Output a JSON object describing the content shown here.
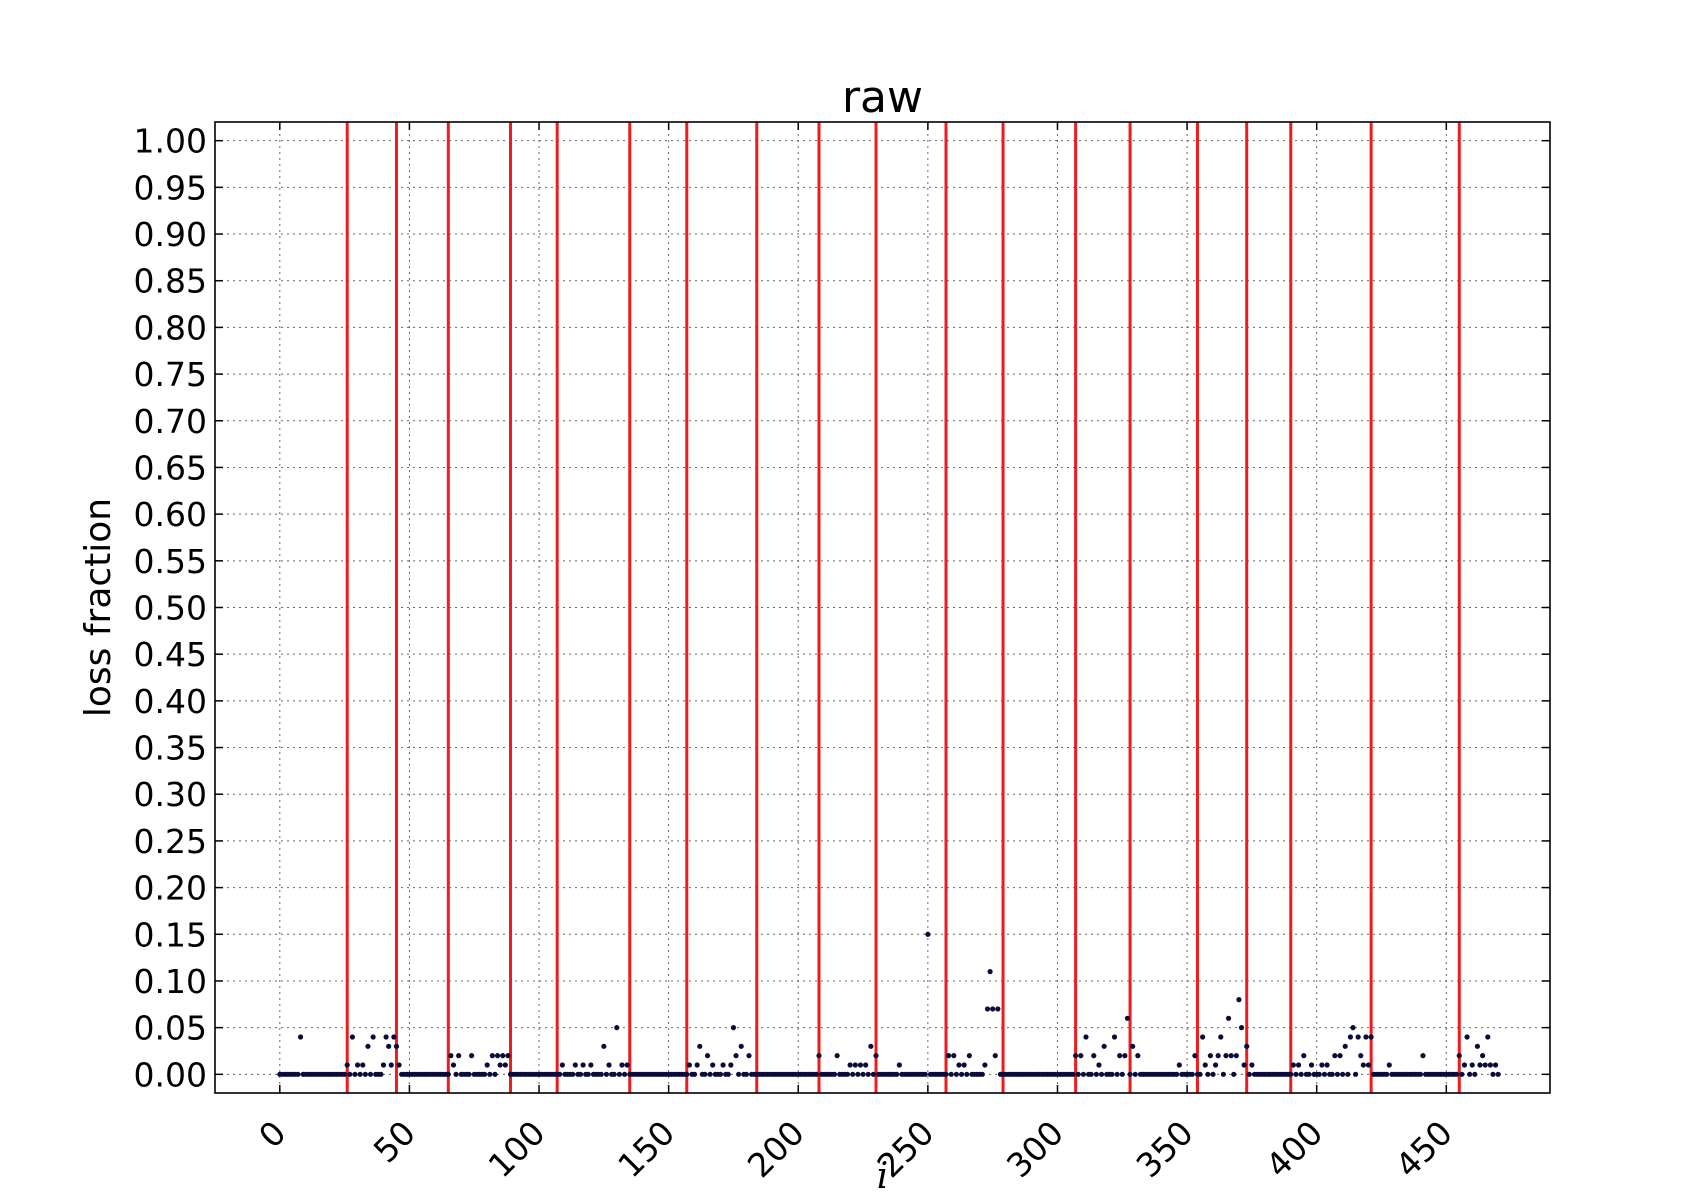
{
  "chart_data": {
    "type": "scatter",
    "title": "raw",
    "xlabel": "i",
    "ylabel": "loss fraction",
    "xlim": [
      -25,
      490
    ],
    "ylim": [
      -0.02,
      1.02
    ],
    "xticks": [
      0,
      50,
      100,
      150,
      200,
      250,
      300,
      350,
      400,
      450
    ],
    "xtick_labels": [
      "0",
      "50",
      "100",
      "150",
      "200",
      "250",
      "300",
      "350",
      "400",
      "450"
    ],
    "yticks": [
      0.0,
      0.05,
      0.1,
      0.15,
      0.2,
      0.25,
      0.3,
      0.35,
      0.4,
      0.45,
      0.5,
      0.55,
      0.6,
      0.65,
      0.7,
      0.75,
      0.8,
      0.85,
      0.9,
      0.95,
      1.0
    ],
    "ytick_labels": [
      "0.00",
      "0.05",
      "0.10",
      "0.15",
      "0.20",
      "0.25",
      "0.30",
      "0.35",
      "0.40",
      "0.45",
      "0.50",
      "0.55",
      "0.60",
      "0.65",
      "0.70",
      "0.75",
      "0.80",
      "0.85",
      "0.90",
      "0.95",
      "1.00"
    ],
    "grid": true,
    "marker_color": "#0b0b3b",
    "line_color": "#ee1c1c",
    "vertical_lines_x": [
      26,
      45,
      65,
      89,
      107,
      135,
      157,
      184,
      208,
      230,
      257,
      279,
      307,
      328,
      354,
      373,
      390,
      421,
      455
    ],
    "nonzero_points": [
      [
        8,
        0.04
      ],
      [
        26,
        0.01
      ],
      [
        28,
        0.04
      ],
      [
        30,
        0.01
      ],
      [
        32,
        0.01
      ],
      [
        34,
        0.03
      ],
      [
        36,
        0.04
      ],
      [
        40,
        0.01
      ],
      [
        41,
        0.04
      ],
      [
        42,
        0.03
      ],
      [
        43,
        0.01
      ],
      [
        44,
        0.04
      ],
      [
        45,
        0.03
      ],
      [
        46,
        0.01
      ],
      [
        66,
        0.02
      ],
      [
        67,
        0.01
      ],
      [
        69,
        0.02
      ],
      [
        74,
        0.02
      ],
      [
        80,
        0.01
      ],
      [
        82,
        0.02
      ],
      [
        84,
        0.02
      ],
      [
        85,
        0.01
      ],
      [
        86,
        0.02
      ],
      [
        87,
        0.01
      ],
      [
        88,
        0.02
      ],
      [
        109,
        0.01
      ],
      [
        114,
        0.01
      ],
      [
        117,
        0.01
      ],
      [
        120,
        0.01
      ],
      [
        125,
        0.03
      ],
      [
        127,
        0.01
      ],
      [
        130,
        0.05
      ],
      [
        132,
        0.01
      ],
      [
        134,
        0.01
      ],
      [
        158,
        0.01
      ],
      [
        161,
        0.01
      ],
      [
        162,
        0.03
      ],
      [
        165,
        0.02
      ],
      [
        167,
        0.01
      ],
      [
        171,
        0.01
      ],
      [
        174,
        0.01
      ],
      [
        175,
        0.05
      ],
      [
        176,
        0.02
      ],
      [
        178,
        0.03
      ],
      [
        181,
        0.02
      ],
      [
        208,
        0.02
      ],
      [
        215,
        0.02
      ],
      [
        220,
        0.01
      ],
      [
        222,
        0.01
      ],
      [
        224,
        0.01
      ],
      [
        226,
        0.01
      ],
      [
        228,
        0.03
      ],
      [
        230,
        0.02
      ],
      [
        239,
        0.01
      ],
      [
        250,
        0.15
      ],
      [
        258,
        0.02
      ],
      [
        260,
        0.02
      ],
      [
        262,
        0.01
      ],
      [
        264,
        0.01
      ],
      [
        266,
        0.02
      ],
      [
        272,
        0.01
      ],
      [
        273,
        0.07
      ],
      [
        274,
        0.11
      ],
      [
        275,
        0.07
      ],
      [
        276,
        0.02
      ],
      [
        277,
        0.07
      ],
      [
        307,
        0.02
      ],
      [
        309,
        0.02
      ],
      [
        311,
        0.04
      ],
      [
        314,
        0.02
      ],
      [
        316,
        0.01
      ],
      [
        318,
        0.03
      ],
      [
        322,
        0.04
      ],
      [
        324,
        0.02
      ],
      [
        326,
        0.02
      ],
      [
        327,
        0.06
      ],
      [
        329,
        0.03
      ],
      [
        331,
        0.02
      ],
      [
        347,
        0.01
      ],
      [
        353,
        0.02
      ],
      [
        356,
        0.04
      ],
      [
        357,
        0.01
      ],
      [
        359,
        0.02
      ],
      [
        361,
        0.01
      ],
      [
        362,
        0.02
      ],
      [
        363,
        0.04
      ],
      [
        365,
        0.02
      ],
      [
        366,
        0.06
      ],
      [
        367,
        0.02
      ],
      [
        369,
        0.02
      ],
      [
        370,
        0.08
      ],
      [
        371,
        0.05
      ],
      [
        372,
        0.01
      ],
      [
        373,
        0.03
      ],
      [
        375,
        0.01
      ],
      [
        391,
        0.01
      ],
      [
        393,
        0.01
      ],
      [
        395,
        0.02
      ],
      [
        398,
        0.01
      ],
      [
        402,
        0.01
      ],
      [
        404,
        0.01
      ],
      [
        407,
        0.02
      ],
      [
        409,
        0.02
      ],
      [
        411,
        0.03
      ],
      [
        413,
        0.04
      ],
      [
        414,
        0.05
      ],
      [
        416,
        0.04
      ],
      [
        417,
        0.02
      ],
      [
        418,
        0.01
      ],
      [
        419,
        0.04
      ],
      [
        420,
        0.01
      ],
      [
        421,
        0.04
      ],
      [
        428,
        0.01
      ],
      [
        441,
        0.02
      ],
      [
        455,
        0.02
      ],
      [
        457,
        0.01
      ],
      [
        458,
        0.04
      ],
      [
        460,
        0.01
      ],
      [
        462,
        0.03
      ],
      [
        463,
        0.01
      ],
      [
        464,
        0.02
      ],
      [
        465,
        0.01
      ],
      [
        466,
        0.04
      ],
      [
        467,
        0.01
      ],
      [
        469,
        0.01
      ]
    ],
    "zero_points_x_range": [
      0,
      470
    ]
  }
}
